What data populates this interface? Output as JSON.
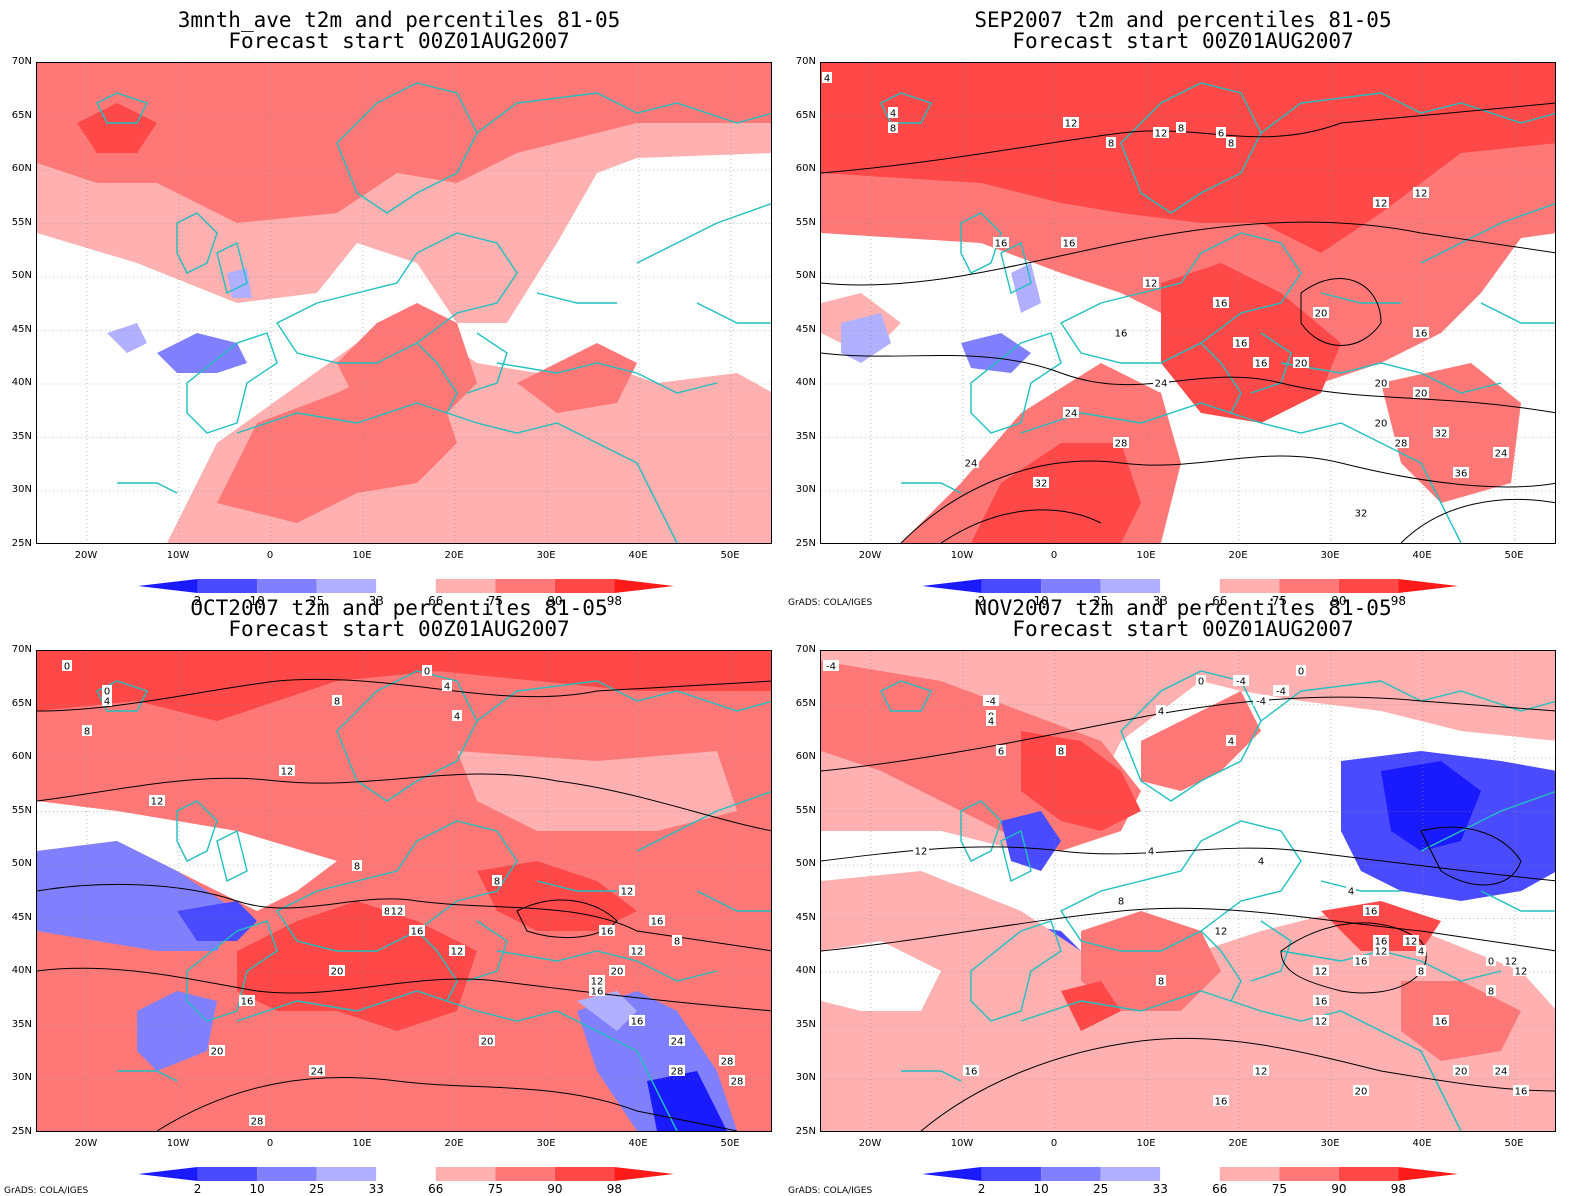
{
  "panels": [
    {
      "title_line1": "3mnth_ave t2m and percentiles 81-05",
      "title_line2": "Forecast start 00Z01AUG2007",
      "credit": "",
      "contour_labels": []
    },
    {
      "title_line1": "SEP2007 t2m and percentiles 81-05",
      "title_line2": "Forecast start 00Z01AUG2007",
      "credit": "GrADS: COLA/IGES",
      "contour_labels": [
        "4",
        "4",
        "8",
        "8",
        "12",
        "12",
        "8",
        "6",
        "8",
        "12",
        "12",
        "16",
        "16",
        "16",
        "12",
        "16",
        "16",
        "16",
        "20",
        "20",
        "16",
        "20",
        "24",
        "24",
        "20",
        "20",
        "28",
        "28",
        "32",
        "24",
        "32",
        "24",
        "36",
        "32"
      ]
    },
    {
      "title_line1": "OCT2007 t2m and percentiles 81-05",
      "title_line2": "Forecast start 00Z01AUG2007",
      "credit": "GrADS: COLA/IGES",
      "contour_labels": [
        "0",
        "0",
        "4",
        "8",
        "4",
        "0",
        "4",
        "8",
        "12",
        "12",
        "8",
        "8",
        "8",
        "12",
        "16",
        "12",
        "12",
        "16",
        "16",
        "12",
        "16",
        "20",
        "16",
        "8",
        "12",
        "16",
        "20",
        "24",
        "20",
        "28",
        "24",
        "28",
        "20",
        "28",
        "28"
      ]
    },
    {
      "title_line1": "NOV2007 t2m and percentiles 81-05",
      "title_line2": "Forecast start 00Z01AUG2007",
      "credit": "GrADS: COLA/IGES",
      "contour_labels": [
        "-4",
        "-4",
        "0",
        "4",
        "-4",
        "0",
        "-4",
        "-4",
        "0",
        "4",
        "4",
        "6",
        "8",
        "4",
        "12",
        "4",
        "4",
        "8",
        "16",
        "8",
        "12",
        "4",
        "12",
        "8",
        "12",
        "16",
        "6",
        "12",
        "16",
        "0",
        "12",
        "8",
        "12",
        "16",
        "12",
        "16",
        "16",
        "20",
        "24",
        "16",
        "20",
        "16",
        "12"
      ]
    }
  ],
  "lat_ticks": [
    "70N",
    "65N",
    "60N",
    "55N",
    "50N",
    "45N",
    "40N",
    "35N",
    "30N",
    "25N"
  ],
  "lon_ticks": [
    "20W",
    "10W",
    "0",
    "10E",
    "20E",
    "30E",
    "40E",
    "50E"
  ],
  "colorbar": {
    "labels": [
      "2",
      "10",
      "25",
      "33",
      "66",
      "75",
      "90",
      "98"
    ],
    "colors": [
      "#1a1aff",
      "#4a4aff",
      "#8080ff",
      "#b0b0ff",
      "#ffffff",
      "#ffb0b0",
      "#ff7878",
      "#ff4848",
      "#ff1a1a"
    ]
  }
}
